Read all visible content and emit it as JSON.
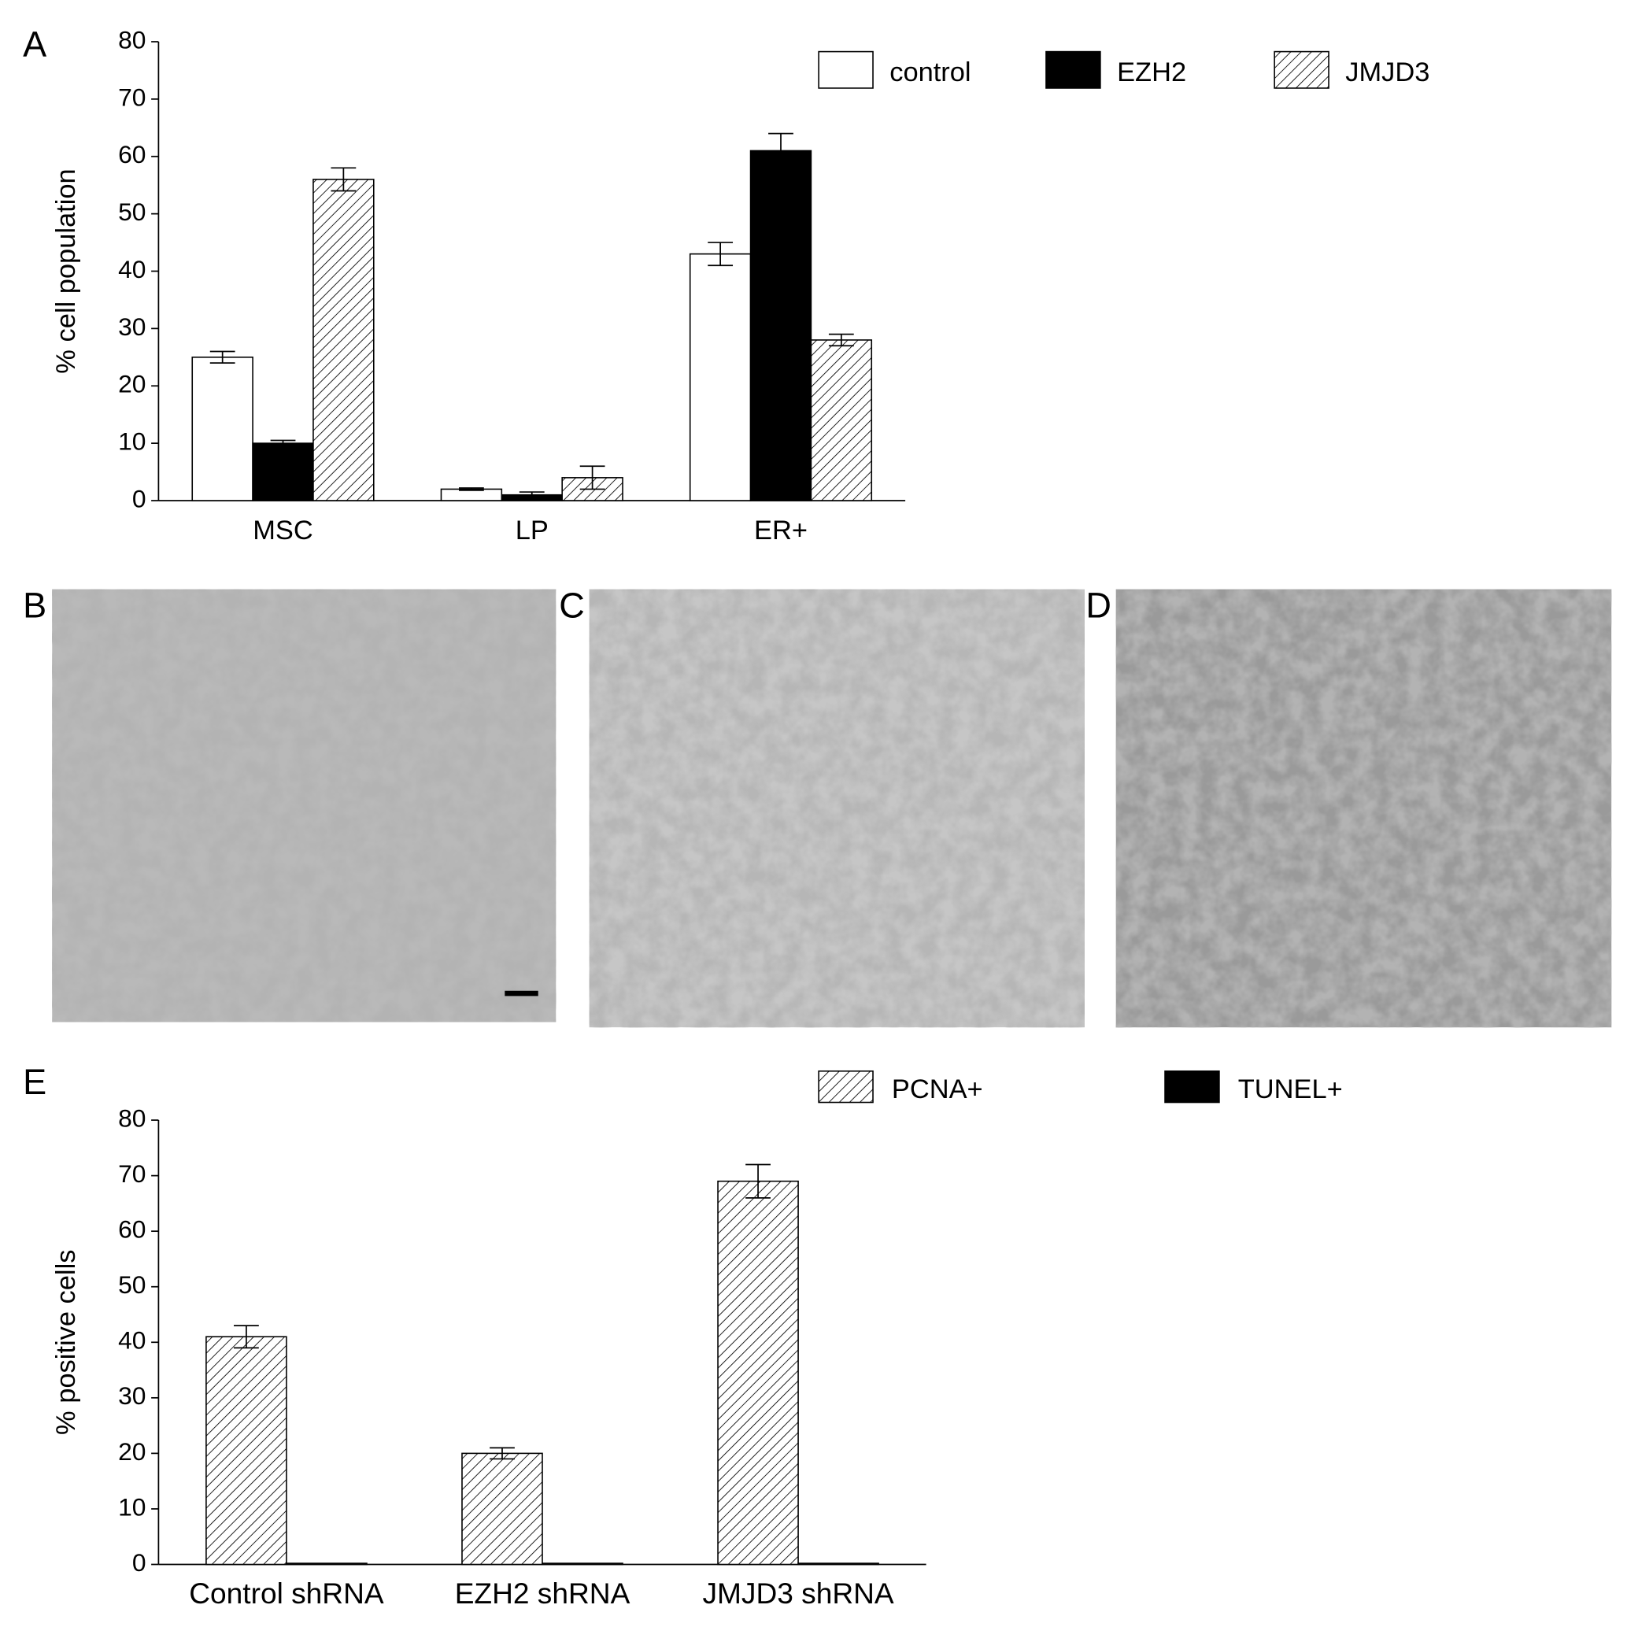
{
  "chart_data": [
    {
      "type": "bar",
      "label": "A",
      "ylabel": "% cell population",
      "categories": [
        "MSC",
        "LP",
        "ER+"
      ],
      "series": [
        {
          "name": "control",
          "color": "#ffffff",
          "values": [
            25,
            2,
            43
          ],
          "errors": [
            1,
            0.2,
            2
          ]
        },
        {
          "name": "EZH2",
          "color": "#000000",
          "values": [
            10,
            1,
            61
          ],
          "errors": [
            0.5,
            0.5,
            3
          ]
        },
        {
          "name": "JMJD3",
          "color": "#ffffff",
          "pattern": "hatch",
          "values": [
            56,
            4,
            28
          ],
          "errors": [
            2,
            2,
            1
          ]
        }
      ],
      "ylim": [
        0,
        80
      ],
      "yticks": [
        0,
        10,
        20,
        30,
        40,
        50,
        60,
        70,
        80
      ],
      "grid": false
    },
    {
      "type": "bar",
      "label": "E",
      "ylabel": "% positive cells",
      "categories": [
        "Control shRNA",
        "EZH2 shRNA",
        "JMJD3 shRNA"
      ],
      "series": [
        {
          "name": "PCNA+",
          "color": "#ffffff",
          "pattern": "hatch",
          "values": [
            41,
            20,
            69
          ],
          "errors": [
            2,
            1,
            3
          ]
        },
        {
          "name": "TUNEL+",
          "color": "#000000",
          "values": [
            0.2,
            0.2,
            0.2
          ]
        }
      ],
      "ylim": [
        0,
        80
      ],
      "yticks": [
        0,
        10,
        20,
        30,
        40,
        50,
        60,
        70,
        80
      ],
      "grid": false
    }
  ],
  "images": [
    {
      "label": "B"
    },
    {
      "label": "C"
    },
    {
      "label": "D"
    }
  ]
}
